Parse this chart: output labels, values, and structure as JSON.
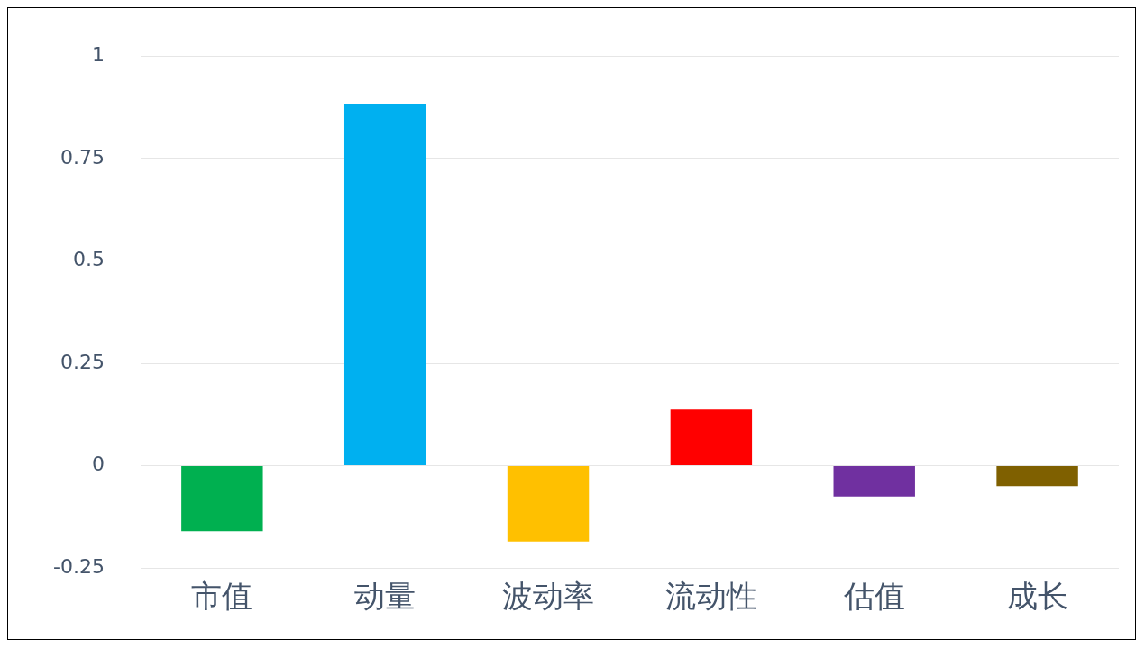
{
  "chart_data": {
    "type": "bar",
    "categories": [
      "市值",
      "动量",
      "波动率",
      "流动性",
      "估值",
      "成长"
    ],
    "values": [
      -0.16,
      0.884,
      -0.185,
      0.137,
      -0.075,
      -0.05
    ],
    "colors": [
      "#00b050",
      "#00b0f0",
      "#ffc000",
      "#ff0000",
      "#7030a0",
      "#7f6000"
    ],
    "ylim": [
      -0.25,
      1
    ],
    "yticks": [
      -0.25,
      0,
      0.25,
      0.5,
      0.75,
      1
    ],
    "grid": "y",
    "legend": false
  }
}
